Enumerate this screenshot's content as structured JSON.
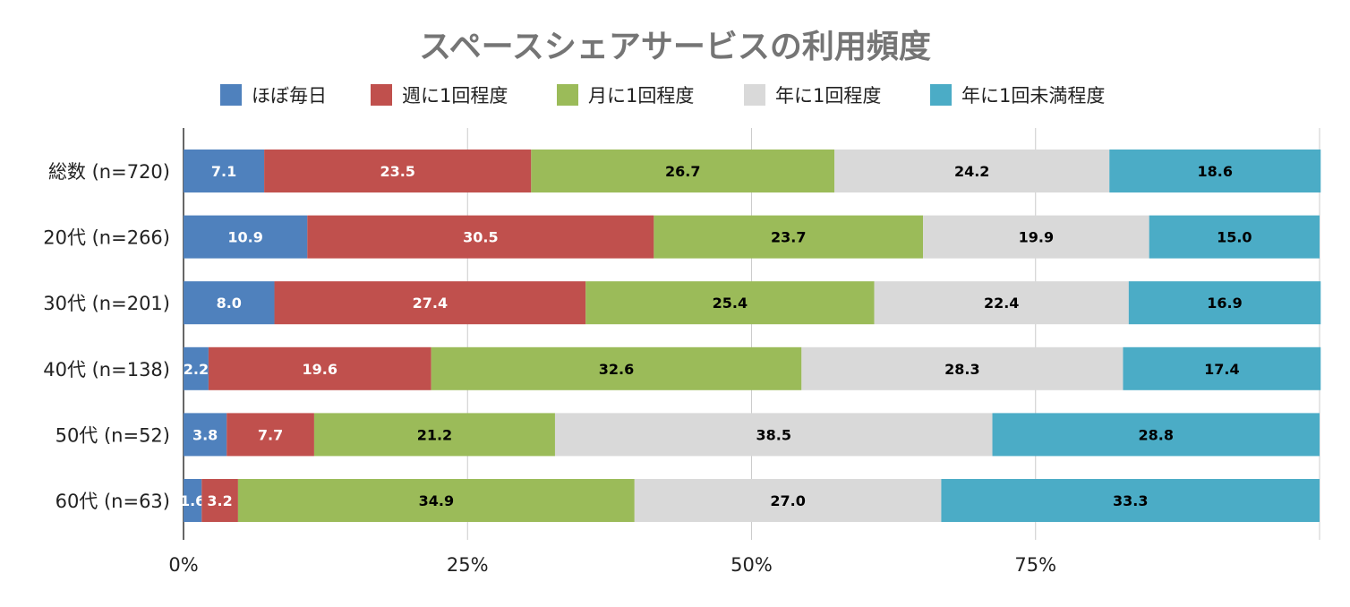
{
  "chart_data": {
    "type": "bar",
    "orientation": "horizontal",
    "stacked": true,
    "title": "スペースシェアサービスの利用頻度",
    "xlabel": "",
    "ylabel": "",
    "xlim": [
      0,
      100
    ],
    "ticks": [
      {
        "value": 0,
        "label": "0%"
      },
      {
        "value": 25,
        "label": "25%"
      },
      {
        "value": 50,
        "label": "50%"
      },
      {
        "value": 75,
        "label": "75%"
      },
      {
        "value": 100,
        "label": ""
      }
    ],
    "grid": true,
    "legend_position": "top",
    "categories": [
      "総数 (n=720)",
      "20代 (n=266)",
      "30代 (n=201)",
      "40代 (n=138)",
      "50代 (n=52)",
      "60代 (n=63)"
    ],
    "series": [
      {
        "name": "ほぼ毎日",
        "color": "#4f81bd",
        "label_color": "#ffffff",
        "values": [
          7.1,
          10.9,
          8.0,
          2.2,
          3.8,
          1.6
        ],
        "labels": [
          "7.1",
          "10.9",
          "8.0",
          "2.2",
          "3.8",
          "1.6"
        ]
      },
      {
        "name": "週に1回程度",
        "color": "#c0504d",
        "label_color": "#ffffff",
        "values": [
          23.5,
          30.5,
          27.4,
          19.6,
          7.7,
          3.2
        ],
        "labels": [
          "23.5",
          "30.5",
          "27.4",
          "19.6",
          "7.7",
          "3.2"
        ]
      },
      {
        "name": "月に1回程度",
        "color": "#9bbb59",
        "label_color": "#000000",
        "values": [
          26.7,
          23.7,
          25.4,
          32.6,
          21.2,
          34.9
        ],
        "labels": [
          "26.7",
          "23.7",
          "25.4",
          "32.6",
          "21.2",
          "34.9"
        ]
      },
      {
        "name": "年に1回程度",
        "color": "#d9d9d9",
        "label_color": "#000000",
        "values": [
          24.2,
          19.9,
          22.4,
          28.3,
          38.5,
          27.0
        ],
        "labels": [
          "24.2",
          "19.9",
          "22.4",
          "28.3",
          "38.5",
          "27.0"
        ]
      },
      {
        "name": "年に1回未満程度",
        "color": "#4bacc6",
        "label_color": "#000000",
        "values": [
          18.6,
          15.0,
          16.9,
          17.4,
          28.8,
          33.3
        ],
        "labels": [
          "18.6",
          "15.0",
          "16.9",
          "17.4",
          "28.8",
          "33.3"
        ]
      }
    ]
  }
}
